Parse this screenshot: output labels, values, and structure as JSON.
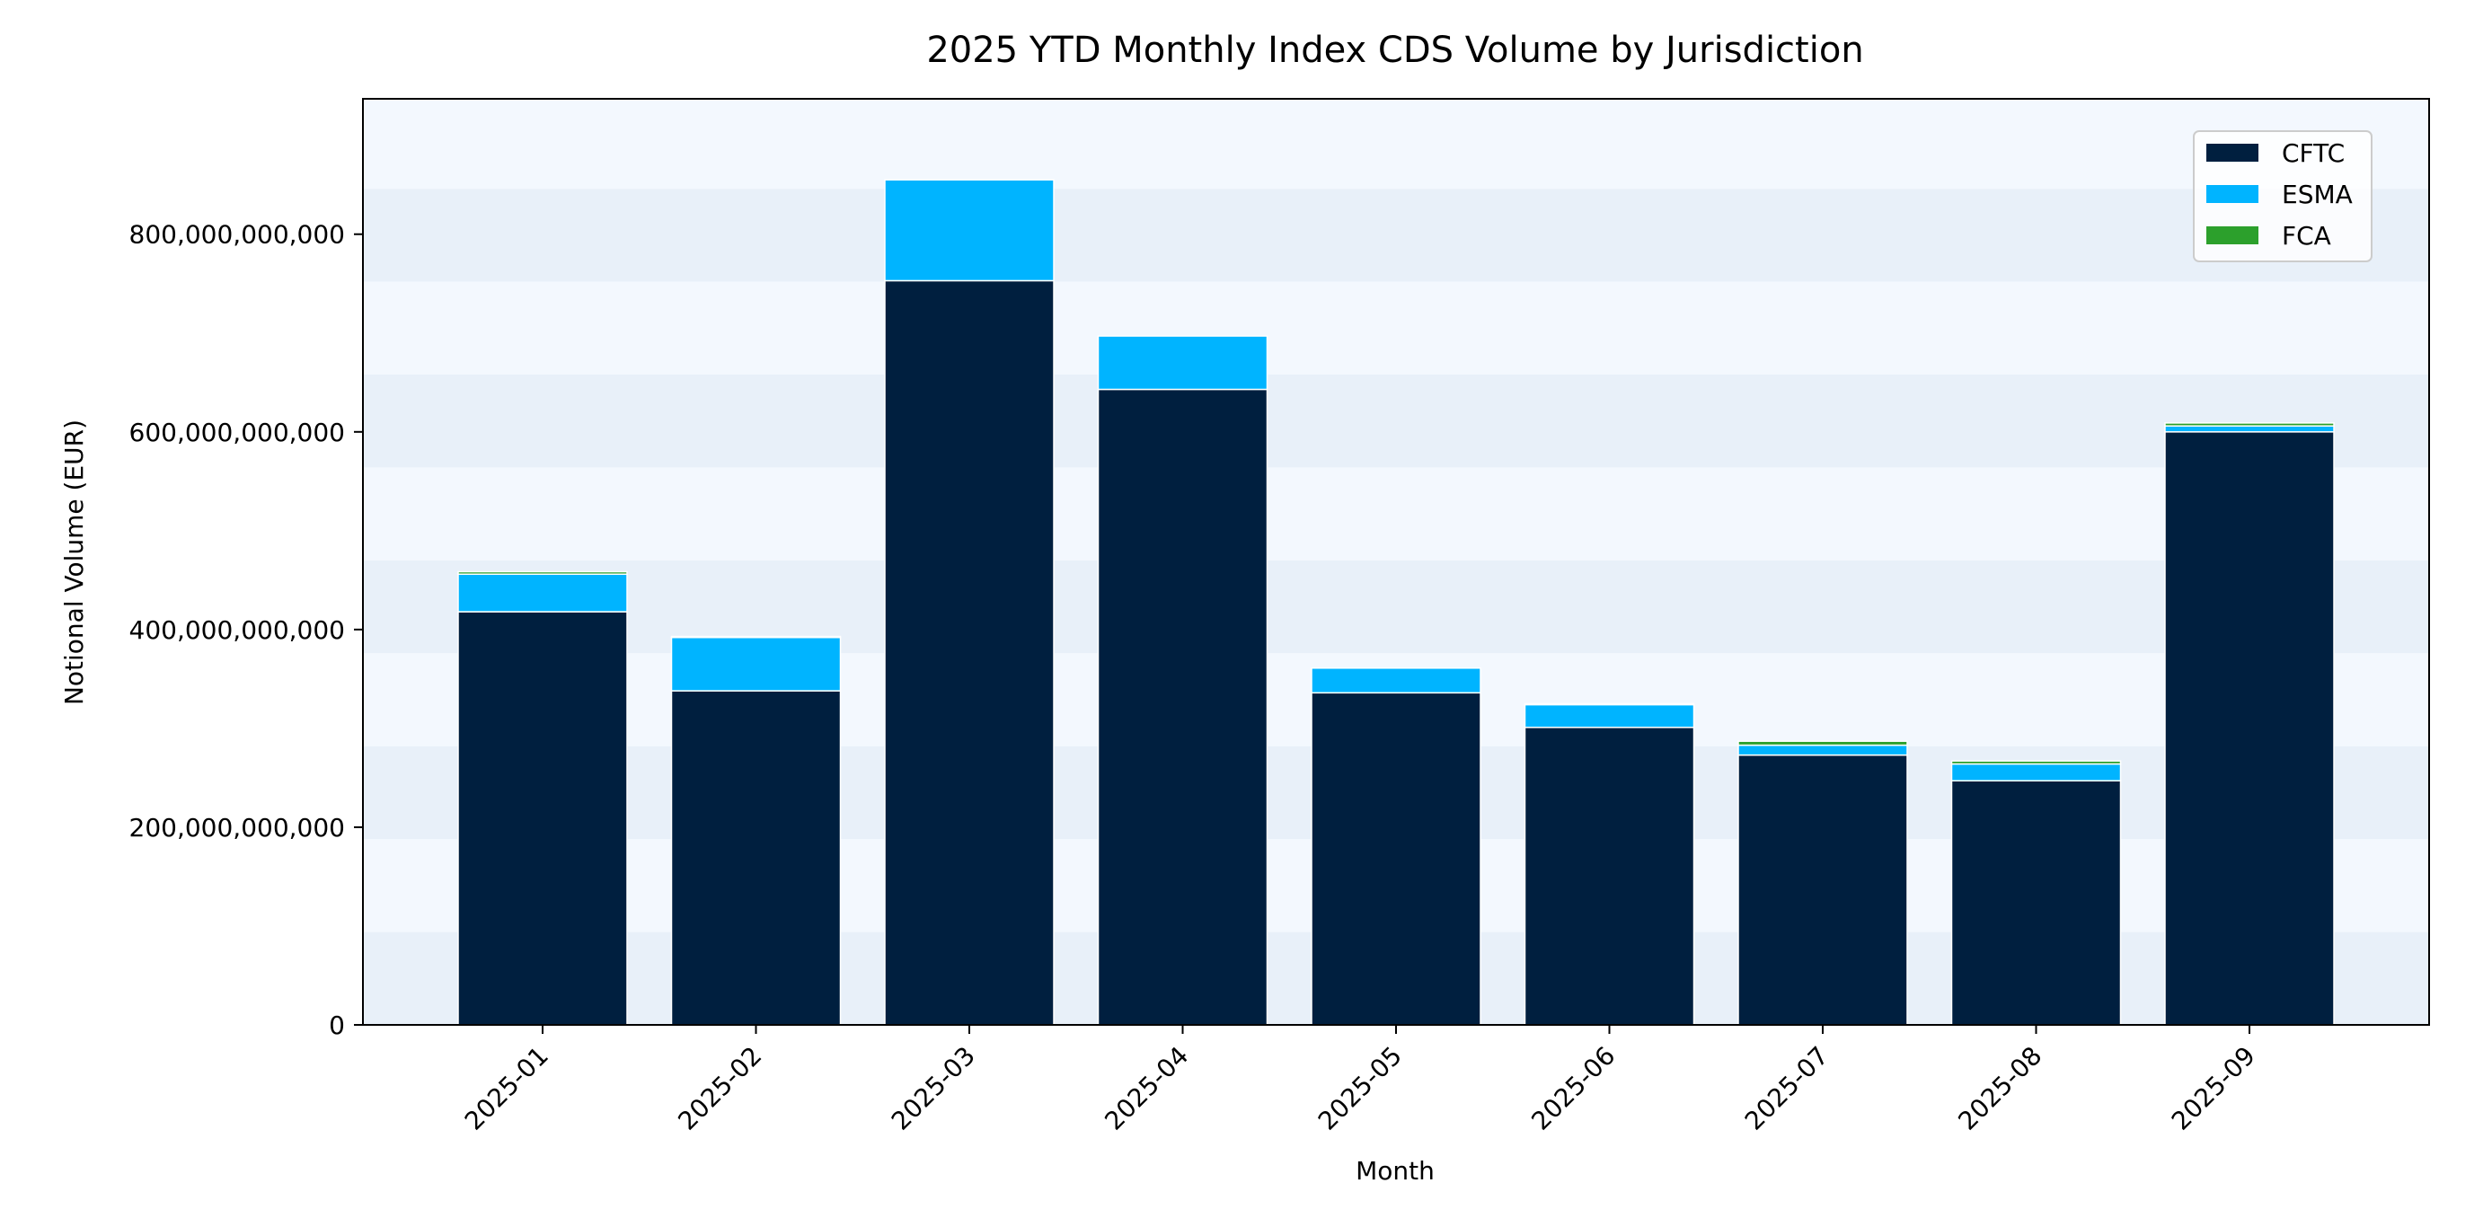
{
  "chart_data": {
    "type": "bar",
    "stacked": true,
    "title": "2025 YTD Monthly Index CDS Volume by Jurisdiction",
    "xlabel": "Month",
    "ylabel": "Notional Volume (EUR)",
    "categories": [
      "2025-01",
      "2025-02",
      "2025-03",
      "2025-04",
      "2025-05",
      "2025-06",
      "2025-07",
      "2025-08",
      "2025-09"
    ],
    "series": [
      {
        "name": "CFTC",
        "color": "#001f3f",
        "values": [
          418000000000,
          338000000000,
          753000000000,
          643000000000,
          336000000000,
          301000000000,
          273000000000,
          247000000000,
          600000000000
        ]
      },
      {
        "name": "ESMA",
        "color": "#00b4ff",
        "values": [
          38000000000,
          54000000000,
          102000000000,
          54000000000,
          25000000000,
          23000000000,
          10000000000,
          17000000000,
          6000000000
        ]
      },
      {
        "name": "FCA",
        "color": "#2ca02c",
        "values": [
          2500000000,
          1000000000,
          0,
          0,
          0,
          1000000000,
          4000000000,
          3000000000,
          3000000000
        ]
      }
    ],
    "ylim": [
      0,
      937000000000
    ],
    "yticks": [
      0,
      200000000000,
      400000000000,
      600000000000,
      800000000000
    ],
    "ytick_labels": [
      "0",
      "200,000,000,000",
      "400,000,000,000",
      "600,000,000,000",
      "800,000,000,000"
    ],
    "band_step": 94000000000,
    "band_colors": [
      "#e8f0f9",
      "#f3f8fe"
    ],
    "legend_position": "top-right",
    "grid": false
  }
}
